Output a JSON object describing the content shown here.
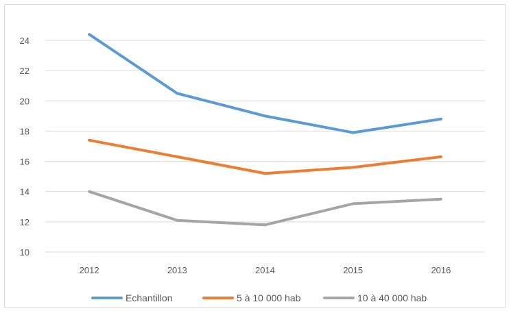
{
  "chart_data": {
    "type": "line",
    "title": "",
    "xlabel": "",
    "ylabel": "",
    "categories": [
      "2012",
      "2013",
      "2014",
      "2015",
      "2016"
    ],
    "ylim": [
      10,
      24
    ],
    "yticks": [
      10,
      12,
      14,
      16,
      18,
      20,
      22,
      24
    ],
    "grid": true,
    "legend_position": "bottom",
    "series": [
      {
        "name": "Echantillon",
        "color": "#5b9bd5",
        "values": [
          24.4,
          20.5,
          19.0,
          17.9,
          18.8
        ]
      },
      {
        "name": "5 à 10 000 hab",
        "color": "#ed7d31",
        "values": [
          17.4,
          16.3,
          15.2,
          15.6,
          16.3
        ]
      },
      {
        "name": "10 à 40 000 hab",
        "color": "#a5a5a5",
        "values": [
          14.0,
          12.1,
          11.8,
          13.2,
          13.5
        ]
      }
    ]
  }
}
